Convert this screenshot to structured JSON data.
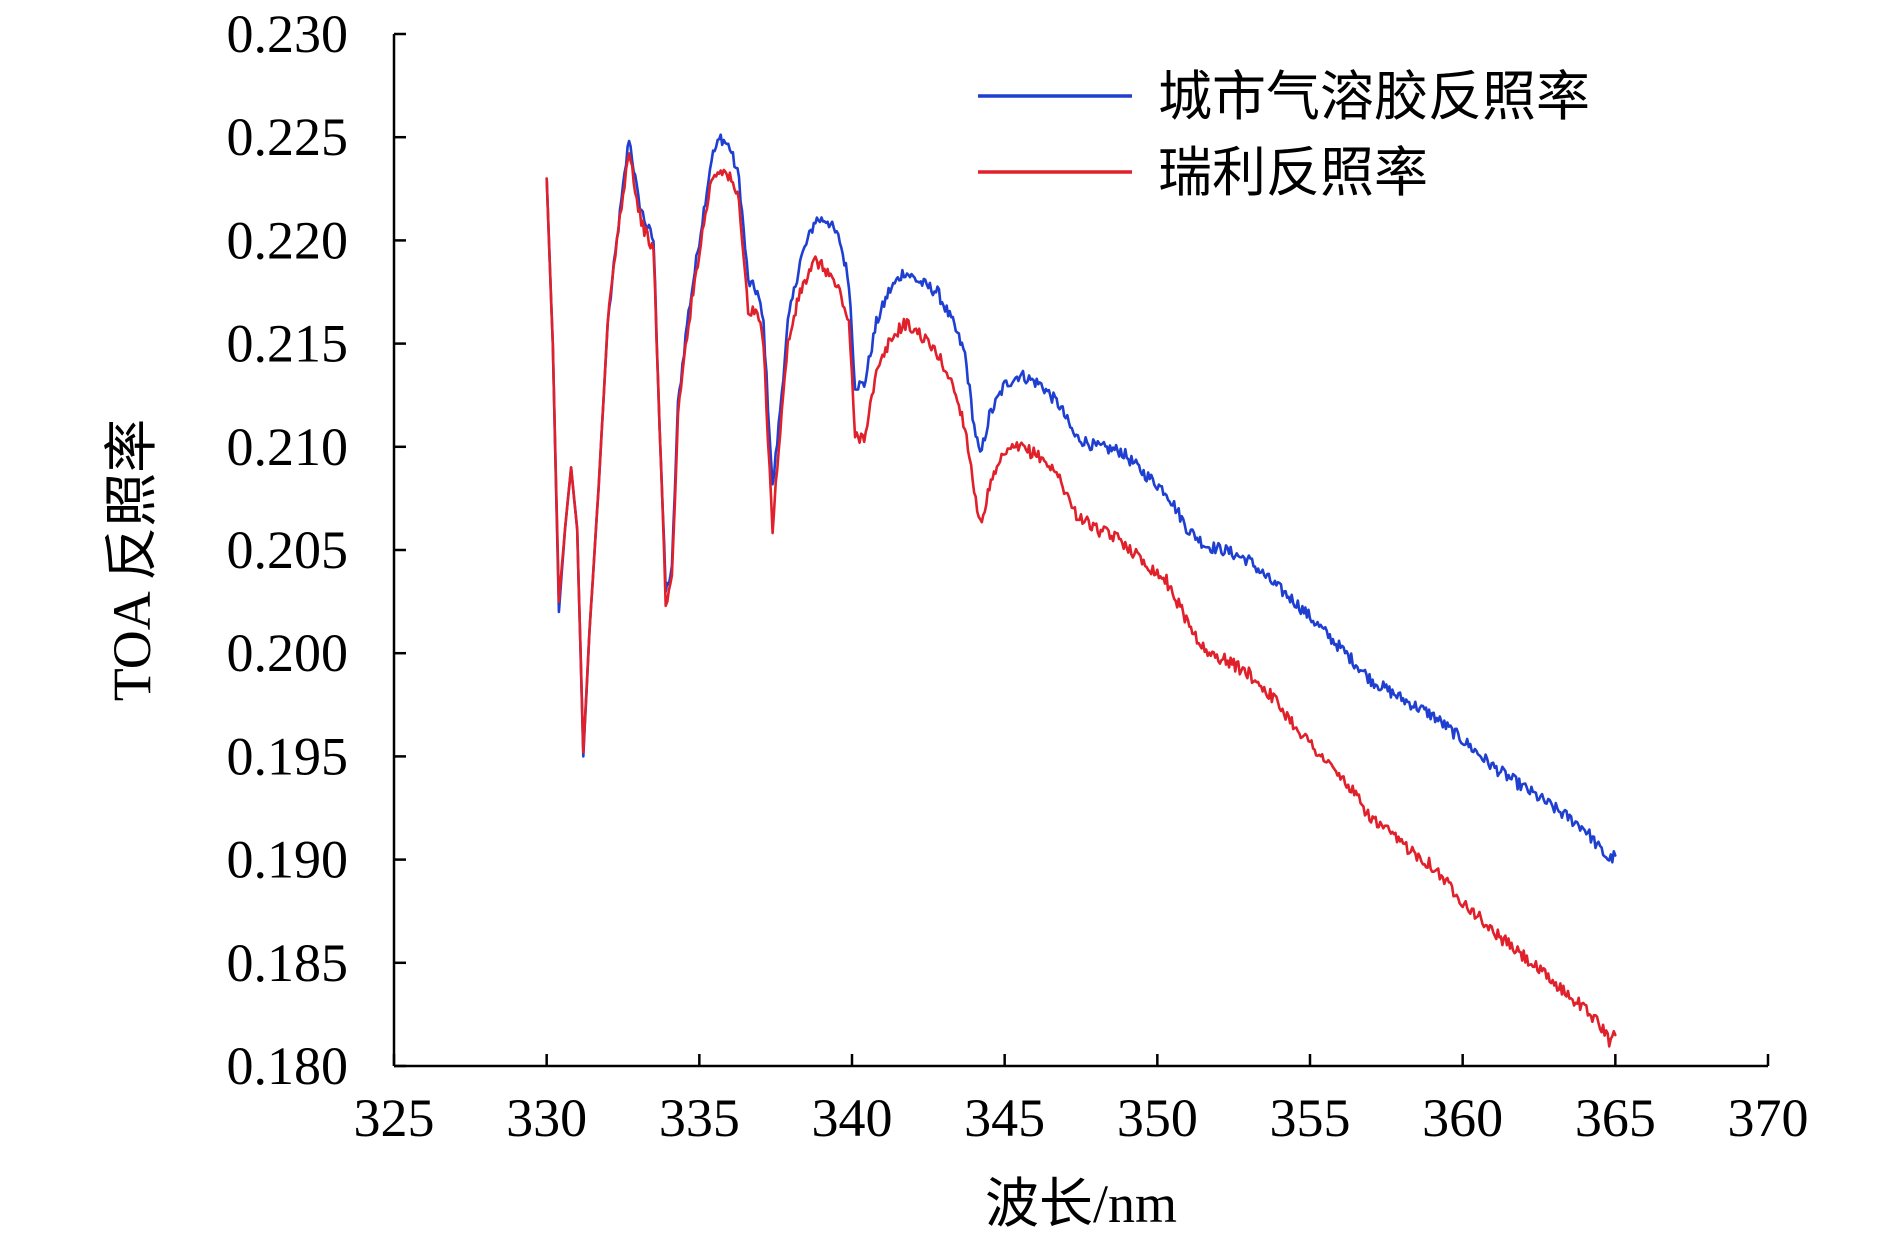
{
  "chart_data": {
    "type": "line",
    "title": "",
    "xlabel": "波长/nm",
    "ylabel": "TOA 反照率",
    "xlim": [
      325,
      370
    ],
    "ylim": [
      0.18,
      0.23
    ],
    "xticks": [
      325,
      330,
      335,
      340,
      345,
      350,
      355,
      360,
      365,
      370
    ],
    "xtick_labels": [
      "325",
      "330",
      "335",
      "340",
      "345",
      "350",
      "355",
      "360",
      "365",
      "370"
    ],
    "yticks": [
      0.18,
      0.185,
      0.19,
      0.195,
      0.2,
      0.205,
      0.21,
      0.215,
      0.22,
      0.225,
      0.23
    ],
    "ytick_labels": [
      "0.180",
      "0.185",
      "0.190",
      "0.195",
      "0.200",
      "0.205",
      "0.210",
      "0.215",
      "0.220",
      "0.225",
      "0.230"
    ],
    "grid": false,
    "legend_position": "top-right",
    "series": [
      {
        "name": "城市气溶胶反照率",
        "color": "#1f3fd1",
        "points": [
          [
            330.0,
            0.223
          ],
          [
            330.2,
            0.215
          ],
          [
            330.4,
            0.202
          ],
          [
            330.6,
            0.206
          ],
          [
            330.8,
            0.209
          ],
          [
            331.0,
            0.206
          ],
          [
            331.2,
            0.195
          ],
          [
            331.4,
            0.201
          ],
          [
            331.7,
            0.208
          ],
          [
            332.0,
            0.216
          ],
          [
            332.3,
            0.22
          ],
          [
            332.7,
            0.225
          ],
          [
            333.0,
            0.222
          ],
          [
            333.2,
            0.221
          ],
          [
            333.5,
            0.22
          ],
          [
            333.7,
            0.211
          ],
          [
            333.9,
            0.203
          ],
          [
            334.1,
            0.204
          ],
          [
            334.3,
            0.212
          ],
          [
            334.6,
            0.216
          ],
          [
            335.0,
            0.22
          ],
          [
            335.4,
            0.224
          ],
          [
            335.7,
            0.225
          ],
          [
            336.0,
            0.2245
          ],
          [
            336.3,
            0.223
          ],
          [
            336.6,
            0.218
          ],
          [
            336.9,
            0.2175
          ],
          [
            337.1,
            0.216
          ],
          [
            337.4,
            0.208
          ],
          [
            337.6,
            0.211
          ],
          [
            337.9,
            0.216
          ],
          [
            338.3,
            0.219
          ],
          [
            338.8,
            0.221
          ],
          [
            339.2,
            0.221
          ],
          [
            339.6,
            0.22
          ],
          [
            339.9,
            0.218
          ],
          [
            340.1,
            0.213
          ],
          [
            340.4,
            0.213
          ],
          [
            340.8,
            0.216
          ],
          [
            341.2,
            0.2175
          ],
          [
            341.7,
            0.2185
          ],
          [
            342.2,
            0.218
          ],
          [
            342.8,
            0.2175
          ],
          [
            343.3,
            0.216
          ],
          [
            343.7,
            0.2145
          ],
          [
            344.0,
            0.211
          ],
          [
            344.2,
            0.2095
          ],
          [
            344.5,
            0.2115
          ],
          [
            345.0,
            0.213
          ],
          [
            345.5,
            0.2135
          ],
          [
            346.2,
            0.213
          ],
          [
            346.8,
            0.212
          ],
          [
            347.3,
            0.2105
          ],
          [
            348.0,
            0.21
          ],
          [
            348.8,
            0.2098
          ],
          [
            349.5,
            0.2088
          ],
          [
            350.3,
            0.2078
          ],
          [
            351.0,
            0.206
          ],
          [
            351.6,
            0.2052
          ],
          [
            352.2,
            0.205
          ],
          [
            353.0,
            0.2045
          ],
          [
            353.7,
            0.2035
          ],
          [
            354.5,
            0.2025
          ],
          [
            355.5,
            0.201
          ],
          [
            356.3,
            0.1998
          ],
          [
            357.0,
            0.1987
          ],
          [
            358.0,
            0.1978
          ],
          [
            359.0,
            0.197
          ],
          [
            360.0,
            0.1958
          ],
          [
            361.0,
            0.1945
          ],
          [
            362.0,
            0.1935
          ],
          [
            363.0,
            0.1925
          ],
          [
            364.0,
            0.1915
          ],
          [
            364.5,
            0.1905
          ],
          [
            364.8,
            0.19
          ],
          [
            365.0,
            0.1902
          ]
        ]
      },
      {
        "name": "瑞利反照率",
        "color": "#e0202a",
        "points": [
          [
            330.0,
            0.223
          ],
          [
            330.2,
            0.215
          ],
          [
            330.4,
            0.2025
          ],
          [
            330.6,
            0.206
          ],
          [
            330.8,
            0.209
          ],
          [
            331.0,
            0.206
          ],
          [
            331.2,
            0.1952
          ],
          [
            331.4,
            0.201
          ],
          [
            331.7,
            0.208
          ],
          [
            332.0,
            0.216
          ],
          [
            332.3,
            0.22
          ],
          [
            332.7,
            0.2245
          ],
          [
            333.0,
            0.2215
          ],
          [
            333.2,
            0.2205
          ],
          [
            333.5,
            0.2195
          ],
          [
            333.7,
            0.211
          ],
          [
            333.9,
            0.2025
          ],
          [
            334.1,
            0.2035
          ],
          [
            334.3,
            0.2115
          ],
          [
            334.6,
            0.2155
          ],
          [
            335.0,
            0.2195
          ],
          [
            335.4,
            0.223
          ],
          [
            335.7,
            0.2235
          ],
          [
            336.0,
            0.223
          ],
          [
            336.3,
            0.222
          ],
          [
            336.6,
            0.2165
          ],
          [
            336.9,
            0.2165
          ],
          [
            337.1,
            0.215
          ],
          [
            337.4,
            0.206
          ],
          [
            337.6,
            0.21
          ],
          [
            337.9,
            0.215
          ],
          [
            338.3,
            0.2175
          ],
          [
            338.8,
            0.219
          ],
          [
            339.2,
            0.2185
          ],
          [
            339.6,
            0.2175
          ],
          [
            339.9,
            0.216
          ],
          [
            340.1,
            0.2105
          ],
          [
            340.4,
            0.2105
          ],
          [
            340.8,
            0.2135
          ],
          [
            341.2,
            0.215
          ],
          [
            341.7,
            0.216
          ],
          [
            342.2,
            0.2155
          ],
          [
            342.8,
            0.2145
          ],
          [
            343.3,
            0.213
          ],
          [
            343.7,
            0.211
          ],
          [
            344.0,
            0.208
          ],
          [
            344.2,
            0.2062
          ],
          [
            344.5,
            0.208
          ],
          [
            345.0,
            0.2097
          ],
          [
            345.5,
            0.21
          ],
          [
            346.2,
            0.2095
          ],
          [
            346.8,
            0.2085
          ],
          [
            347.3,
            0.2068
          ],
          [
            348.0,
            0.206
          ],
          [
            348.8,
            0.2055
          ],
          [
            349.5,
            0.2045
          ],
          [
            350.3,
            0.2035
          ],
          [
            351.0,
            0.2015
          ],
          [
            351.6,
            0.2
          ],
          [
            352.2,
            0.1997
          ],
          [
            353.0,
            0.199
          ],
          [
            353.7,
            0.198
          ],
          [
            354.5,
            0.1965
          ],
          [
            355.5,
            0.1948
          ],
          [
            356.3,
            0.1935
          ],
          [
            357.0,
            0.192
          ],
          [
            358.0,
            0.1908
          ],
          [
            359.0,
            0.1897
          ],
          [
            360.0,
            0.188
          ],
          [
            361.0,
            0.1865
          ],
          [
            362.0,
            0.1853
          ],
          [
            363.0,
            0.184
          ],
          [
            364.0,
            0.1828
          ],
          [
            364.5,
            0.182
          ],
          [
            364.8,
            0.1812
          ],
          [
            365.0,
            0.1815
          ]
        ]
      }
    ]
  }
}
